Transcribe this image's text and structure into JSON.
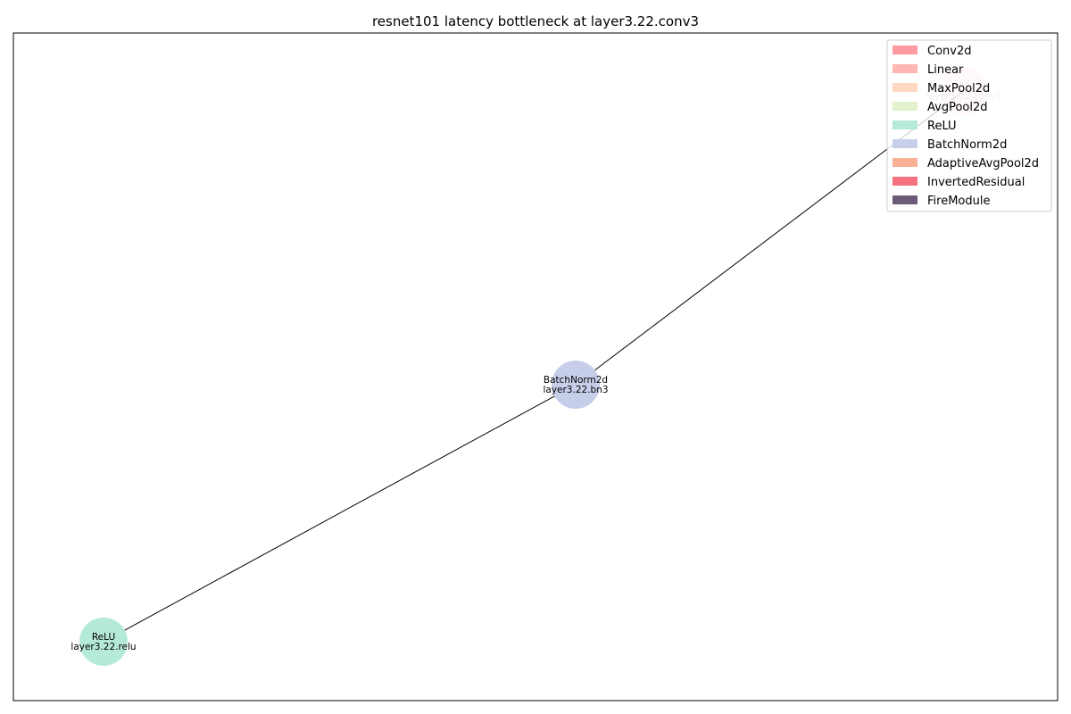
{
  "title": "resnet101 latency bottleneck at layer3.22.conv3",
  "graph": {
    "nodes": [
      {
        "id": "conv3",
        "type_label": "",
        "name_label": "layer3.22.conv3",
        "color": "#ff9aa2",
        "opacity": 0.3
      },
      {
        "id": "bn3",
        "type_label": "BatchNorm2d",
        "name_label": "layer3.22.bn3",
        "color": "#c7ceea",
        "opacity": 1
      },
      {
        "id": "relu",
        "type_label": "ReLU",
        "name_label": "layer3.22.relu",
        "color": "#b5ead7",
        "opacity": 1
      }
    ],
    "edges": [
      {
        "from": "conv3",
        "to": "bn3"
      },
      {
        "from": "bn3",
        "to": "relu"
      }
    ]
  },
  "legend": {
    "position": "top-right",
    "items": [
      {
        "label": "Conv2d",
        "color": "#ff9aa2"
      },
      {
        "label": "Linear",
        "color": "#ffb7b2"
      },
      {
        "label": "MaxPool2d",
        "color": "#ffdac1"
      },
      {
        "label": "AvgPool2d",
        "color": "#e2f0cb"
      },
      {
        "label": "ReLU",
        "color": "#b5ead7"
      },
      {
        "label": "BatchNorm2d",
        "color": "#c7ceea"
      },
      {
        "label": "AdaptiveAvgPool2d",
        "color": "#f8b195"
      },
      {
        "label": "InvertedResidual",
        "color": "#f67280"
      },
      {
        "label": "FireModule",
        "color": "#6c5b7b"
      }
    ]
  }
}
